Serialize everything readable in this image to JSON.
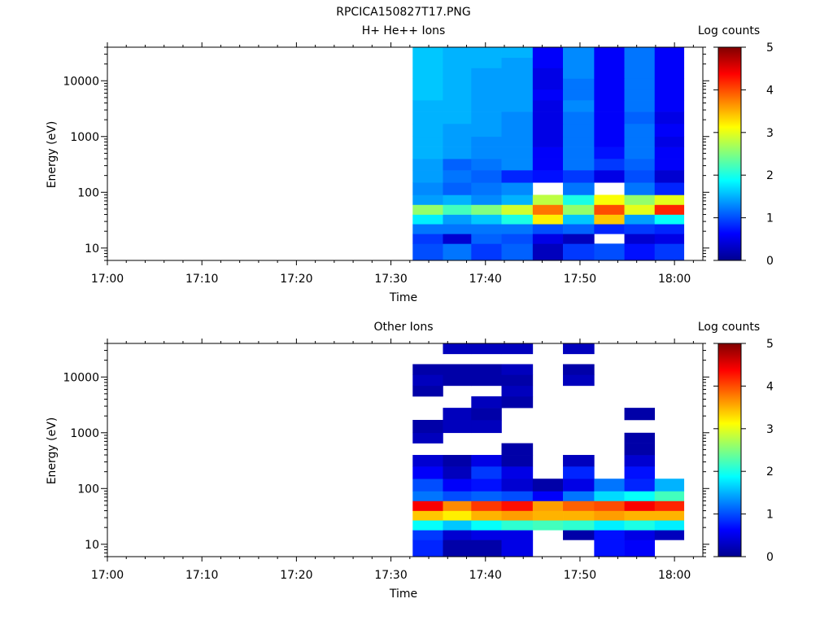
{
  "figure_title": "RPCICA150827T17.PNG",
  "chart_data": [
    {
      "type": "heatmap",
      "title": "H+ He++ Ions",
      "xlabel": "Time",
      "ylabel": "Energy (eV)",
      "x_tick_labels": [
        "17:00",
        "17:10",
        "17:20",
        "17:30",
        "17:40",
        "17:50",
        "18:00"
      ],
      "xlim_minutes": [
        0,
        63
      ],
      "y_scale": "log",
      "ylim": [
        6,
        40000
      ],
      "y_tick_labels": [
        "10",
        "100",
        "1000",
        "10000"
      ],
      "colorbar": {
        "label": "Log counts",
        "range": [
          0,
          5
        ],
        "tick_labels": [
          "0",
          "1",
          "2",
          "3",
          "4",
          "5"
        ],
        "colormap": "jet"
      },
      "time_bins_minutes": [
        32.3,
        35.5,
        38.5,
        41.7,
        45.0,
        48.2,
        51.5,
        54.7,
        57.9,
        61.0
      ],
      "energy_bins_eV": [
        6,
        12,
        18,
        27,
        40,
        60,
        90,
        150,
        250,
        400,
        650,
        1000,
        1700,
        2800,
        4500,
        7000,
        11000,
        17000,
        26000,
        40000
      ],
      "log_counts": [
        [
          1.0,
          1.2,
          0.9,
          1.1,
          0.3,
          0.9,
          1.0,
          0.7,
          0.9
        ],
        [
          0.9,
          0.4,
          1.1,
          1.0,
          0.5,
          0.3,
          null,
          0.4,
          0.5
        ],
        [
          1.2,
          1.2,
          1.2,
          1.2,
          1.0,
          1.1,
          0.8,
          0.9,
          0.8
        ],
        [
          1.8,
          1.4,
          1.6,
          2.0,
          3.2,
          1.6,
          3.4,
          1.4,
          1.9
        ],
        [
          2.6,
          2.2,
          2.5,
          2.9,
          3.8,
          2.6,
          4.0,
          3.0,
          4.2
        ],
        [
          1.4,
          1.5,
          1.3,
          1.5,
          2.8,
          2.0,
          3.1,
          2.6,
          3.0
        ],
        [
          1.3,
          1.1,
          1.2,
          1.3,
          null,
          1.2,
          null,
          1.2,
          0.8
        ],
        [
          1.4,
          1.2,
          1.1,
          0.8,
          0.7,
          0.9,
          0.5,
          1.0,
          0.4
        ],
        [
          1.4,
          1.1,
          1.2,
          1.3,
          0.6,
          1.2,
          0.9,
          1.1,
          0.6
        ],
        [
          1.5,
          1.4,
          1.3,
          1.3,
          0.6,
          1.2,
          0.7,
          1.2,
          0.6
        ],
        [
          1.5,
          1.4,
          1.3,
          1.3,
          0.5,
          1.2,
          0.6,
          1.2,
          0.5
        ],
        [
          1.5,
          1.4,
          1.4,
          1.3,
          0.5,
          1.2,
          0.6,
          1.2,
          0.6
        ],
        [
          1.5,
          1.5,
          1.4,
          1.3,
          0.5,
          1.2,
          0.6,
          1.1,
          0.5
        ],
        [
          1.5,
          1.5,
          1.4,
          1.4,
          0.5,
          1.3,
          0.6,
          1.2,
          0.6
        ],
        [
          1.6,
          1.5,
          1.4,
          1.4,
          0.6,
          1.2,
          0.6,
          1.2,
          0.6
        ],
        [
          1.6,
          1.5,
          1.4,
          1.4,
          0.5,
          1.2,
          0.6,
          1.2,
          0.6
        ],
        [
          1.6,
          1.5,
          1.4,
          1.4,
          0.5,
          1.3,
          0.6,
          1.2,
          0.6
        ],
        [
          1.6,
          1.5,
          1.5,
          1.4,
          0.6,
          1.3,
          0.6,
          1.2,
          0.6
        ],
        [
          1.6,
          1.5,
          1.5,
          1.5,
          0.6,
          1.3,
          0.6,
          1.2,
          0.6
        ]
      ]
    },
    {
      "type": "heatmap",
      "title": "Other Ions",
      "xlabel": "Time",
      "ylabel": "Energy (eV)",
      "x_tick_labels": [
        "17:00",
        "17:10",
        "17:20",
        "17:30",
        "17:40",
        "17:50",
        "18:00"
      ],
      "xlim_minutes": [
        0,
        63
      ],
      "y_scale": "log",
      "ylim": [
        6,
        40000
      ],
      "y_tick_labels": [
        "10",
        "100",
        "1000",
        "10000"
      ],
      "colorbar": {
        "label": "Log counts",
        "range": [
          0,
          5
        ],
        "tick_labels": [
          "0",
          "1",
          "2",
          "3",
          "4",
          "5"
        ],
        "colormap": "jet"
      },
      "time_bins_minutes": [
        32.3,
        35.5,
        38.5,
        41.7,
        45.0,
        48.2,
        51.5,
        54.7,
        57.9,
        61.0
      ],
      "energy_bins_eV": [
        6,
        12,
        18,
        27,
        40,
        60,
        90,
        150,
        250,
        400,
        650,
        1000,
        1700,
        2800,
        4500,
        7000,
        11000,
        17000,
        26000,
        40000
      ],
      "log_counts": [
        [
          0.8,
          0.2,
          0.2,
          0.5,
          null,
          null,
          0.7,
          0.6,
          null
        ],
        [
          0.9,
          0.4,
          0.5,
          0.5,
          null,
          0.2,
          0.7,
          0.5,
          0.3
        ],
        [
          1.9,
          1.6,
          1.9,
          2.1,
          2.2,
          2.1,
          1.8,
          2.0,
          1.8
        ],
        [
          3.4,
          3.2,
          3.5,
          3.6,
          3.5,
          3.5,
          3.6,
          3.5,
          3.5
        ],
        [
          4.4,
          3.7,
          4.1,
          4.3,
          3.6,
          3.9,
          4.0,
          4.4,
          4.2
        ],
        [
          1.2,
          1.0,
          1.1,
          1.0,
          0.6,
          1.2,
          1.7,
          1.9,
          2.2
        ],
        [
          1.0,
          0.6,
          0.7,
          0.4,
          0.2,
          0.5,
          1.2,
          0.8,
          1.5
        ],
        [
          0.6,
          0.3,
          0.9,
          0.5,
          null,
          0.8,
          null,
          0.7,
          null
        ],
        [
          0.4,
          0.2,
          0.5,
          0.2,
          null,
          0.3,
          null,
          0.4,
          null
        ],
        [
          null,
          null,
          null,
          0.2,
          null,
          null,
          null,
          0.2,
          null
        ],
        [
          0.3,
          null,
          null,
          null,
          null,
          null,
          null,
          0.2,
          null
        ],
        [
          0.2,
          0.3,
          0.3,
          null,
          null,
          null,
          null,
          null,
          null
        ],
        [
          null,
          0.3,
          0.2,
          null,
          null,
          null,
          null,
          0.2,
          null
        ],
        [
          null,
          null,
          0.3,
          0.2,
          null,
          null,
          null,
          null,
          null
        ],
        [
          0.2,
          null,
          null,
          0.3,
          null,
          null,
          null,
          null,
          null
        ],
        [
          0.3,
          0.2,
          0.2,
          0.2,
          null,
          0.3,
          null,
          null,
          null
        ],
        [
          0.2,
          0.2,
          0.2,
          0.3,
          null,
          0.2,
          null,
          null,
          null
        ],
        [
          null,
          null,
          null,
          null,
          null,
          null,
          null,
          null,
          null
        ],
        [
          null,
          0.3,
          0.3,
          0.3,
          null,
          0.3,
          null,
          null,
          null
        ]
      ]
    }
  ]
}
